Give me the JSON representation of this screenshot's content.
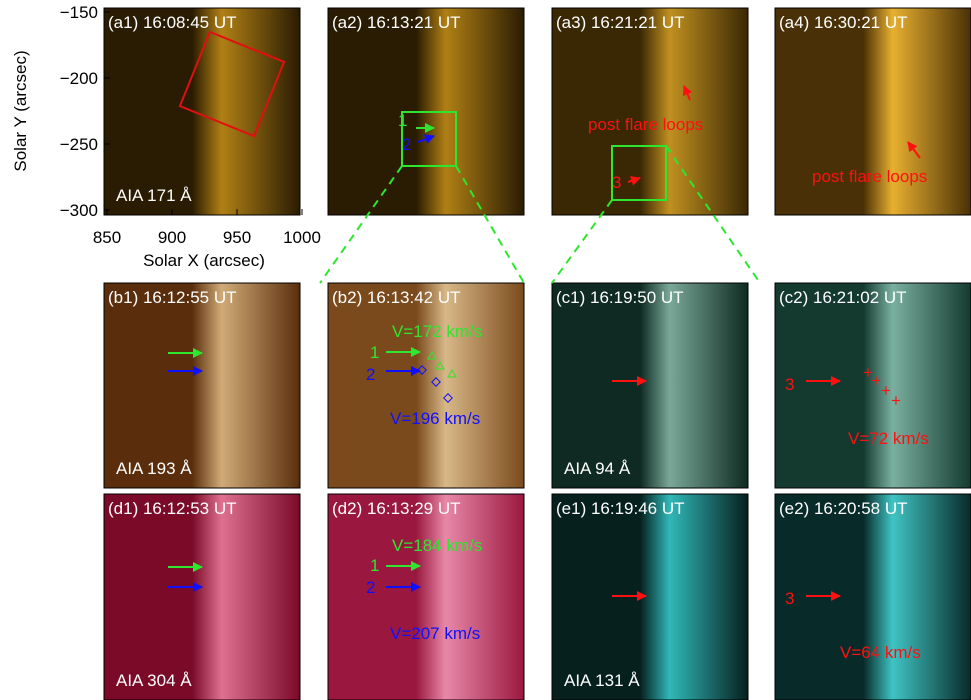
{
  "axes": {
    "xlabel": "Solar X (arcsec)",
    "ylabel": "Solar Y (arcsec)",
    "xticks": [
      850,
      900,
      950,
      1000
    ],
    "yticks": [
      {
        "value": -150,
        "label": "−150"
      },
      {
        "value": -200,
        "label": "−200"
      },
      {
        "value": -250,
        "label": "−250"
      },
      {
        "value": -300,
        "label": "−300"
      }
    ]
  },
  "panels": [
    {
      "label": "(a1) 16:08:45 UT",
      "channel": "AIA 171 Å",
      "annotations": []
    },
    {
      "label": "(a2) 16:13:21 UT",
      "annotations": [
        "1",
        "2"
      ]
    },
    {
      "label": "(a3) 16:21:21 UT",
      "annotations": [
        "post flare loops",
        "3"
      ]
    },
    {
      "label": "(a4) 16:30:21 UT",
      "annotations": [
        "post flare loops"
      ]
    },
    {
      "label": "(b1) 16:12:55 UT",
      "channel": "AIA 193 Å",
      "annotations": []
    },
    {
      "label": "(b2) 16:13:42 UT",
      "annotations": [
        "V=172 km/s",
        "1",
        "2",
        "V=196 km/s"
      ]
    },
    {
      "label": "(c1) 16:19:50 UT",
      "channel": "AIA 94 Å",
      "annotations": []
    },
    {
      "label": "(c2) 16:21:02 UT",
      "annotations": [
        "3",
        "V=72 km/s"
      ]
    },
    {
      "label": "(d1) 16:12:53 UT",
      "channel": "AIA 304 Å",
      "annotations": []
    },
    {
      "label": "(d2) 16:13:29 UT",
      "annotations": [
        "V=184 km/s",
        "1",
        "2",
        "V=207 km/s"
      ]
    },
    {
      "label": "(e1) 16:19:46 UT",
      "channel": "AIA 131 Å",
      "annotations": []
    },
    {
      "label": "(e2) 16:20:58 UT",
      "annotations": [
        "3",
        "V=64 km/s"
      ]
    }
  ]
}
